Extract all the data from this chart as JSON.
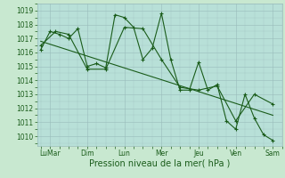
{
  "xlabel": "Pression niveau de la mer( hPa )",
  "background_color": "#c8e8d0",
  "plot_bg_color": "#b8e0d8",
  "grid_color": "#99bbbb",
  "line_color": "#1a5c1a",
  "ylim": [
    1009.3,
    1019.5
  ],
  "xlim": [
    -0.2,
    13.0
  ],
  "xtick_labels": [
    "LuMar",
    "Dim",
    "Lun",
    "Mer",
    "Jeu",
    "Ven",
    "Sam"
  ],
  "xtick_positions": [
    0.5,
    2.5,
    4.5,
    6.5,
    8.5,
    10.5,
    12.5
  ],
  "series1_x": [
    0.0,
    0.5,
    1.0,
    1.5,
    2.0,
    2.5,
    3.0,
    3.5,
    4.0,
    4.5,
    5.0,
    5.5,
    6.0,
    6.5,
    7.0,
    7.5,
    8.0,
    8.5,
    9.0,
    9.5,
    10.0,
    10.5,
    11.0,
    11.5,
    12.0,
    12.5
  ],
  "series1_y": [
    1016.2,
    1017.5,
    1017.3,
    1017.0,
    1017.7,
    1015.0,
    1015.2,
    1014.9,
    1018.7,
    1018.5,
    1017.8,
    1015.5,
    1016.3,
    1018.8,
    1015.5,
    1013.3,
    1013.3,
    1015.3,
    1013.3,
    1013.7,
    1011.1,
    1010.5,
    1013.0,
    1011.3,
    1010.1,
    1009.7
  ],
  "series2_x": [
    0.0,
    0.8,
    1.5,
    2.5,
    3.5,
    4.5,
    5.5,
    6.5,
    7.5,
    8.5,
    9.5,
    10.5,
    11.5,
    12.5
  ],
  "series2_y": [
    1016.5,
    1017.5,
    1017.3,
    1014.8,
    1014.8,
    1017.8,
    1017.7,
    1015.5,
    1013.5,
    1013.3,
    1013.6,
    1011.1,
    1013.0,
    1012.3
  ],
  "series3_x": [
    0.0,
    12.5
  ],
  "series3_y": [
    1016.8,
    1011.5
  ],
  "ytick_values": [
    1010,
    1011,
    1012,
    1013,
    1014,
    1015,
    1016,
    1017,
    1018,
    1019
  ],
  "xlabel_fontsize": 7,
  "tick_fontsize": 5.5,
  "line_width": 0.8,
  "marker_size": 3
}
